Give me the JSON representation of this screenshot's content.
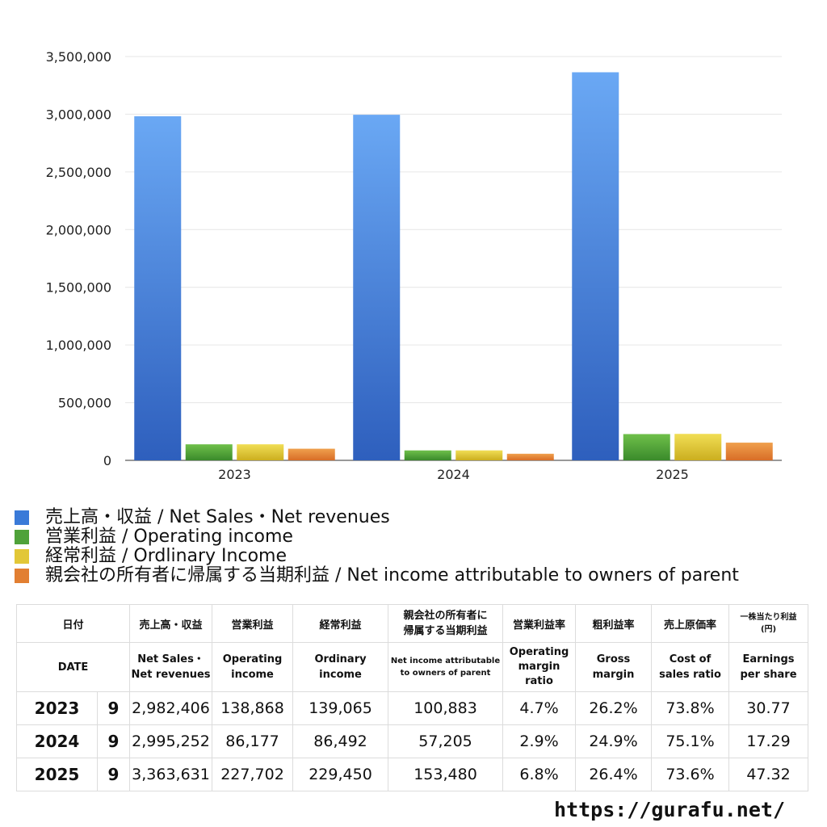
{
  "chart_data": {
    "type": "bar",
    "categories": [
      "2023",
      "2024",
      "2025"
    ],
    "series": [
      {
        "name": "売上高・収益 / Net Sales・Net revenues",
        "values": [
          2982406,
          2995252,
          3363631
        ],
        "color_top": "#6aa8f4",
        "color_bottom": "#2e5fbd"
      },
      {
        "name": "営業利益 / Operating income",
        "values": [
          138868,
          86177,
          227702
        ],
        "color_top": "#6fc04a",
        "color_bottom": "#3a8a2b"
      },
      {
        "name": "経常利益 / Ordlinary Income",
        "values": [
          139065,
          86492,
          229450
        ],
        "color_top": "#f1de55",
        "color_bottom": "#cbae1f"
      },
      {
        "name": "親会社の所有者に帰属する当期利益 / Net income attributable to owners of parent",
        "values": [
          100883,
          57205,
          153480
        ],
        "color_top": "#f0a04d",
        "color_bottom": "#d86d27"
      }
    ],
    "ylim": [
      0,
      3500000
    ],
    "yticks": [
      0,
      500000,
      1000000,
      1500000,
      2000000,
      2500000,
      3000000,
      3500000
    ],
    "ytick_labels": [
      "0",
      "500,000",
      "1,000,000",
      "1,500,000",
      "2,000,000",
      "2,500,000",
      "3,000,000",
      "3,500,000"
    ],
    "grid": true,
    "legend_position": "bottom-left"
  },
  "legend_colors": [
    "#3a7ad8",
    "#4fa23a",
    "#e2c737",
    "#e27f32"
  ],
  "table": {
    "header_jp": {
      "date": "日付",
      "sales": "売上高・収益",
      "operating": "営業利益",
      "ordinary": "経常利益",
      "net_l1": "親会社の所有者に",
      "net_l2": "帰属する当期利益",
      "op_margin": "営業利益率",
      "gross": "粗利益率",
      "cost": "売上原価率",
      "eps_l1": "一株当たり利益",
      "eps_l2": "(円)"
    },
    "header_en": {
      "date": "DATE",
      "sales_l1": "Net Sales・",
      "sales_l2": "Net revenues",
      "operating_l1": "Operating",
      "operating_l2": "income",
      "ordinary_l1": "Ordinary",
      "ordinary_l2": "income",
      "net_l1": "Net income attributable",
      "net_l2": "to owners of parent",
      "op_margin_l1": "Operating",
      "op_margin_l2": "margin",
      "op_margin_l3": "ratio",
      "gross_l1": "Gross",
      "gross_l2": "margin",
      "cost_l1": "Cost of",
      "cost_l2": "sales ratio",
      "eps_l1": "Earnings",
      "eps_l2": "per share"
    },
    "rows": [
      {
        "year": "2023",
        "month": "9",
        "sales": "2,982,406",
        "operating": "138,868",
        "ordinary": "139,065",
        "net": "100,883",
        "op_margin": "4.7%",
        "gross": "26.2%",
        "cost": "73.8%",
        "eps": "30.77"
      },
      {
        "year": "2024",
        "month": "9",
        "sales": "2,995,252",
        "operating": "86,177",
        "ordinary": "86,492",
        "net": "57,205",
        "op_margin": "2.9%",
        "gross": "24.9%",
        "cost": "75.1%",
        "eps": "17.29"
      },
      {
        "year": "2025",
        "month": "9",
        "sales": "3,363,631",
        "operating": "227,702",
        "ordinary": "229,450",
        "net": "153,480",
        "op_margin": "6.8%",
        "gross": "26.4%",
        "cost": "73.6%",
        "eps": "47.32"
      }
    ]
  },
  "site": "https://gurafu.net/"
}
